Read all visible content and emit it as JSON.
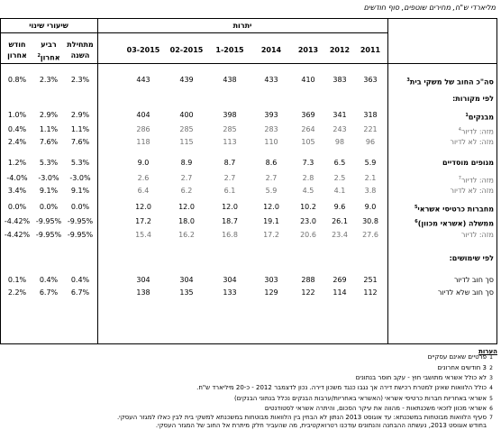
{
  "title": "מליארדי ש\"ח, מחירים שוטפים, סוף חודשים",
  "headers": {
    "change_group": "שיעורי שינוי",
    "balances_group": "יתרות",
    "change_cols": [
      {
        "label": "מתחילת השנה"
      },
      {
        "label": "רביע אחרון",
        "sup": "2"
      },
      {
        "label": "חודש אחרון"
      }
    ],
    "date_cols": [
      "03-2015",
      "02-2015",
      "1-2015",
      "2014",
      "2013",
      "2012",
      "2011"
    ]
  },
  "rows": [
    {
      "label": "סה\"כ החוב של משקי בית",
      "sup": "3",
      "style": "bold",
      "change": [
        "2.3%",
        "2.3%",
        "0.8%"
      ],
      "values": [
        "443",
        "439",
        "438",
        "433",
        "410",
        "383",
        "363"
      ]
    },
    {
      "label": "לפי מקורות:",
      "style": "bold",
      "change": [],
      "values": []
    },
    {
      "label": "מבנקים",
      "sup": "1",
      "style": "bold",
      "change": [
        "2.9%",
        "2.9%",
        "1.0%"
      ],
      "values": [
        "404",
        "400",
        "398",
        "393",
        "369",
        "341",
        "318"
      ]
    },
    {
      "label": "מזה: לדיור",
      "sup": "4",
      "style": "gray",
      "change": [
        "1.1%",
        "1.1%",
        "0.4%"
      ],
      "values": [
        "286",
        "285",
        "285",
        "283",
        "264",
        "243",
        "221"
      ]
    },
    {
      "label": "מזה: לא לדיור",
      "style": "gray",
      "change": [
        "7.6%",
        "7.6%",
        "2.4%"
      ],
      "values": [
        "118",
        "115",
        "113",
        "110",
        "105",
        "98",
        "96"
      ]
    },
    {
      "label": "מגופים מוסדיים",
      "style": "bold",
      "change": [
        "5.3%",
        "5.3%",
        "1.2%"
      ],
      "values": [
        "9.0",
        "8.9",
        "8.7",
        "8.6",
        "7.3",
        "6.5",
        "5.9"
      ]
    },
    {
      "label": "מזה: לדיור",
      "sup": "7",
      "style": "gray",
      "change": [
        "-3.0%",
        "-3.0%",
        "-4.0%"
      ],
      "values": [
        "2.6",
        "2.7",
        "2.7",
        "2.7",
        "2.8",
        "2.5",
        "2.1"
      ]
    },
    {
      "label": "מזה: לא לדיור",
      "style": "gray",
      "change": [
        "9.1%",
        "9.1%",
        "3.4%"
      ],
      "values": [
        "6.4",
        "6.2",
        "6.1",
        "5.9",
        "4.5",
        "4.1",
        "3.8"
      ]
    },
    {
      "label": "מחברות כרטיסי אשראי",
      "sup": "5",
      "style": "bold",
      "change": [
        "0.0%",
        "0.0%",
        "0.0%"
      ],
      "values": [
        "12.0",
        "12.0",
        "12.0",
        "12.0",
        "10.2",
        "9.6",
        "9.0"
      ]
    },
    {
      "label": "ממשלה (אשראי מכוון)",
      "sup": "6",
      "style": "bold",
      "change": [
        "-9.95%",
        "-9.95%",
        "-4.42%"
      ],
      "values": [
        "17.2",
        "18.0",
        "18.7",
        "19.1",
        "23.0",
        "26.1",
        "30.8"
      ]
    },
    {
      "label": "מזה: לדיור",
      "style": "gray",
      "change": [
        "-9.95%",
        "-9.95%",
        "-4.42%"
      ],
      "values": [
        "15.4",
        "16.2",
        "16.8",
        "17.2",
        "20.6",
        "23.4",
        "27.6"
      ]
    },
    {
      "label": "לפי שימושים:",
      "style": "bold",
      "change": [],
      "values": []
    },
    {
      "label": "סך חוב לדיור",
      "style": "normal",
      "change": [
        "0.4%",
        "0.4%",
        "0.1%"
      ],
      "values": [
        "304",
        "304",
        "304",
        "303",
        "288",
        "269",
        "251"
      ]
    },
    {
      "label": "סך חוב שלא לדיור",
      "style": "normal",
      "change": [
        "6.7%",
        "6.7%",
        "2.2%"
      ],
      "values": [
        "138",
        "135",
        "133",
        "129",
        "122",
        "114",
        "112"
      ]
    }
  ],
  "notes_title": "הערות",
  "footnotes": [
    {
      "n": "1",
      "text": "פרטיים שאינם עסקיים"
    },
    {
      "n": "2",
      "text": "3 חודשים אחרונים"
    },
    {
      "n": "3",
      "text": "לא כולל אשראי מתושבי חוץ - עקב חוסר בנתונים"
    },
    {
      "n": "4",
      "text": "כולל הלוואות שאינן למטרת רכישת דירה אך נגבו כנגד משכון דירה. נכון לדצמבר 2012 - כ-20 מיליארד ש\"ח."
    },
    {
      "n": "5",
      "text": "אשראי באחריות חברות כרטיסי אשראי (האשראי באחריות/ערבות הבנקים נכלל בנתוני הבנקים)"
    },
    {
      "n": "6",
      "text": "אשראי מכוון לזכאי משכנתאות - מהווה את עיקר הסכום, והיתרה אשראי לסטודנטים"
    },
    {
      "n": "7",
      "text": "סעיף הלוואות מבוטחות במשכנתא: עד אוגוסט 2013 הנתון לא הבחין בין הלוואות מבוטחות במשכנתא למשקי בית לבין כאלו למגזר העסקי."
    },
    {
      "n": "",
      "text": "בחודש אוגוסט 2013, נעשתה ההבחנה והנתונים עודכנו רטרואקטיבית, מה שהעביר חלק מיתרת אל החוב של המגזר העסקי."
    }
  ]
}
